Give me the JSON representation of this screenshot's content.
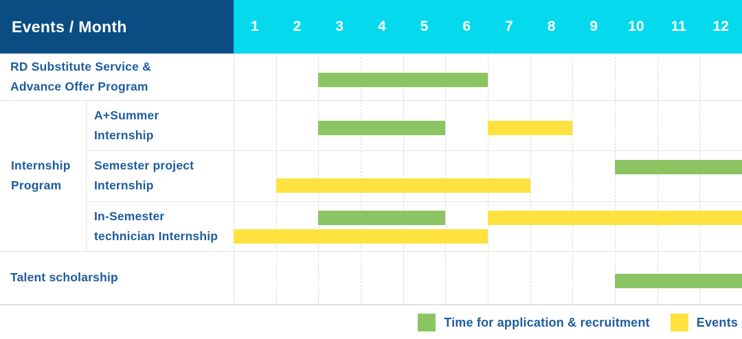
{
  "header": {
    "title": "Events / Month",
    "months": [
      "1",
      "2",
      "3",
      "4",
      "5",
      "6",
      "7",
      "8",
      "9",
      "10",
      "11",
      "12"
    ]
  },
  "colors": {
    "header_navy": "#0b4d82",
    "header_cyan": "#04d9ee",
    "label_blue": "#1e5c9e",
    "bar_green": "#8bc563",
    "bar_yellow": "#ffe23f",
    "grid_gray": "#e3e3e3"
  },
  "chart_data": {
    "type": "gantt",
    "title": "Events / Month",
    "x_axis": {
      "unit": "month",
      "ticks": [
        1,
        2,
        3,
        4,
        5,
        6,
        7,
        8,
        9,
        10,
        11,
        12
      ],
      "range": [
        1,
        12
      ],
      "grid": "dashed-vertical"
    },
    "series": {
      "time-for-application": {
        "label": "Time for application & recruitment",
        "color": "#8bc563"
      },
      "events": {
        "label": "Events",
        "color": "#ffe23f"
      }
    },
    "group": {
      "label_lines": [
        "Internship",
        "Program"
      ],
      "rows": [
        1,
        2,
        3
      ]
    },
    "rows": [
      {
        "id": "rd-substitute-service",
        "label_lines": [
          "RD Substitute Service &",
          "Advance Offer Program"
        ],
        "in_group": false,
        "bars": [
          {
            "series": "time-for-application",
            "start_month": 3,
            "end_month": 6,
            "lane": "center"
          }
        ]
      },
      {
        "id": "a-plus-summer-internship",
        "label_lines": [
          "A+Summer",
          "Internship"
        ],
        "in_group": true,
        "bars": [
          {
            "series": "time-for-application",
            "start_month": 3,
            "end_month": 5,
            "lane": "center"
          },
          {
            "series": "events",
            "start_month": 7,
            "end_month": 8,
            "lane": "center"
          }
        ]
      },
      {
        "id": "semester-project-internship",
        "label_lines": [
          "Semester project",
          "Internship"
        ],
        "in_group": true,
        "bars": [
          {
            "series": "time-for-application",
            "start_month": 10,
            "end_month": 12,
            "lane": "upper"
          },
          {
            "series": "events",
            "start_month": 2,
            "end_month": 7,
            "lane": "lower"
          }
        ]
      },
      {
        "id": "in-semester-technician-internship",
        "label_lines": [
          "In-Semester",
          "technician Internship"
        ],
        "in_group": true,
        "bars": [
          {
            "series": "time-for-application",
            "start_month": 3,
            "end_month": 5,
            "lane": "upper"
          },
          {
            "series": "events",
            "start_month": 7,
            "end_month": 12,
            "lane": "upper"
          },
          {
            "series": "events",
            "start_month": 1,
            "end_month": 6,
            "lane": "lower"
          }
        ]
      },
      {
        "id": "talent-scholarship",
        "label_lines": [
          "Talent scholarship"
        ],
        "in_group": false,
        "bars": [
          {
            "series": "time-for-application",
            "start_month": 10,
            "end_month": 12,
            "lane": "center"
          }
        ]
      }
    ],
    "legend": {
      "position": "bottom-right",
      "order": [
        "time-for-application",
        "events"
      ]
    }
  }
}
